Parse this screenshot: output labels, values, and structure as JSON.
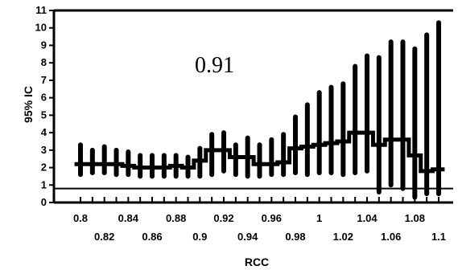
{
  "chart_data": {
    "type": "error-bar",
    "xlabel": "RCC",
    "ylabel": "95% IC",
    "annotation": "0.91",
    "ylim": [
      0,
      11
    ],
    "yticks": [
      0,
      1,
      2,
      3,
      4,
      5,
      6,
      7,
      8,
      9,
      10,
      11
    ],
    "ytick_labels": [
      "0",
      "1",
      "2",
      "3",
      "4",
      "5",
      "6",
      "7",
      "8",
      "9",
      "10",
      "11"
    ],
    "xlim": [
      0.8,
      1.1
    ],
    "xticks_upper": [
      0.8,
      0.84,
      0.88,
      0.92,
      0.96,
      1.0,
      1.04,
      1.08
    ],
    "xticks_upper_labels": [
      "0.8",
      "0.84",
      "0.88",
      "0.92",
      "0.96",
      "1",
      "1.04",
      "1.08"
    ],
    "xticks_lower": [
      0.82,
      0.86,
      0.9,
      0.94,
      0.98,
      1.02,
      1.06,
      1.1
    ],
    "xticks_lower_labels": [
      "0.82",
      "0.86",
      "0.9",
      "0.94",
      "0.98",
      "1.02",
      "1.06",
      "1.1"
    ],
    "reference_line_y": 0.8,
    "x": [
      0.8,
      0.81,
      0.82,
      0.83,
      0.84,
      0.85,
      0.86,
      0.87,
      0.88,
      0.89,
      0.9,
      0.91,
      0.92,
      0.93,
      0.94,
      0.95,
      0.96,
      0.97,
      0.98,
      0.99,
      1.0,
      1.01,
      1.02,
      1.03,
      1.04,
      1.05,
      1.06,
      1.07,
      1.08,
      1.09,
      1.1
    ],
    "lower": [
      1.6,
      1.7,
      1.7,
      1.6,
      1.6,
      1.5,
      1.5,
      1.5,
      1.5,
      1.5,
      1.5,
      1.6,
      1.8,
      1.6,
      1.5,
      1.5,
      1.6,
      1.6,
      1.7,
      1.6,
      1.7,
      1.7,
      1.6,
      1.7,
      1.8,
      0.6,
      1.0,
      0.8,
      0.3,
      0.5,
      0.5
    ],
    "upper": [
      3.3,
      3.0,
      3.2,
      3.0,
      2.9,
      2.7,
      2.7,
      2.7,
      2.7,
      2.6,
      3.1,
      3.9,
      4.0,
      3.3,
      3.7,
      3.3,
      3.6,
      3.9,
      4.9,
      5.6,
      6.3,
      6.6,
      6.8,
      7.8,
      8.4,
      8.3,
      9.2,
      9.2,
      8.8,
      9.6,
      10.3
    ],
    "estimate": [
      2.2,
      2.2,
      2.2,
      2.2,
      2.1,
      2.0,
      2.0,
      2.0,
      2.1,
      2.0,
      2.4,
      3.0,
      3.0,
      2.6,
      2.6,
      2.2,
      2.2,
      2.3,
      3.1,
      3.2,
      3.3,
      3.4,
      3.5,
      4.0,
      4.0,
      3.3,
      3.6,
      3.6,
      2.7,
      1.8,
      1.9
    ]
  }
}
